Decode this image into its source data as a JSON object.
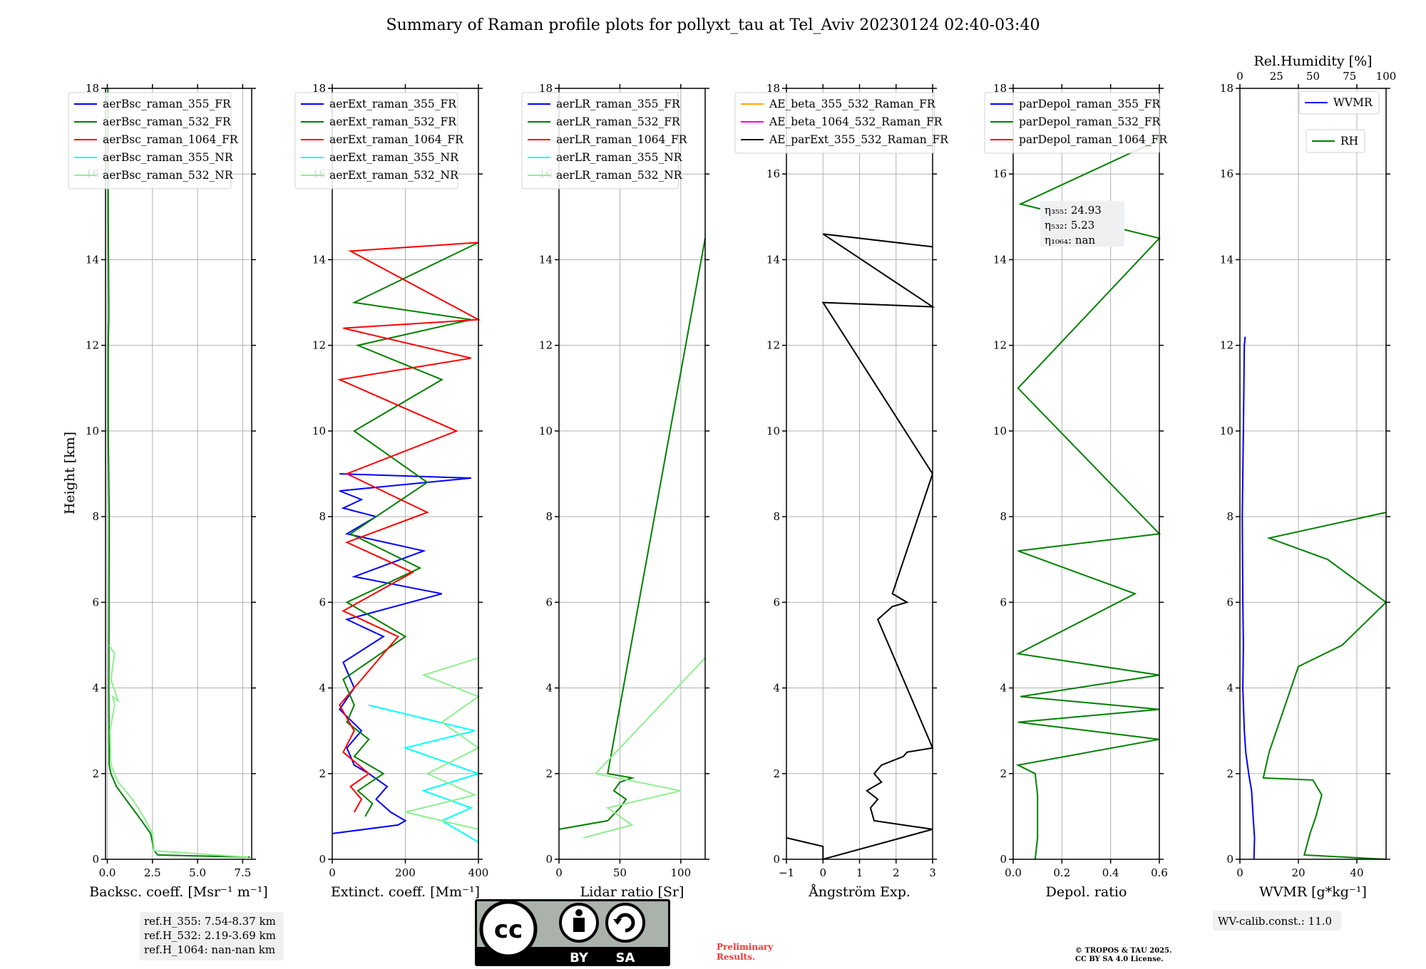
{
  "figure": {
    "title": "Summary of Raman profile plots for pollyxt_tau at Tel_Aviv 20230124 02:40-03:40",
    "ylabel": "Height [km]",
    "notes": {
      "ref_heights": [
        "ref.H_355: 7.54-8.37 km",
        "ref.H_532: 2.19-3.69 km",
        "ref.H_1064: nan-nan km"
      ],
      "wv_calib": "WV-calib.const.: 11.0",
      "preliminary": [
        "Preliminary",
        "Results."
      ],
      "copyright": [
        "© TROPOS & TAU 2025.",
        "CC BY SA 4.0 License."
      ],
      "license_badge": [
        "BY",
        "SA"
      ]
    },
    "colors": {
      "blue": "#0000ff",
      "green": "#008000",
      "red": "#ff0000",
      "cyan": "#00ffff",
      "lightgreen": "#90ee90",
      "orange": "#ffa500",
      "magenta": "#ff00ff",
      "black": "#000000"
    }
  },
  "chart_data": [
    {
      "type": "line",
      "xlabel": "Backsc. coeff. [Msr⁻¹ m⁻¹]",
      "xlim": [
        -0.1,
        8
      ],
      "ylim": [
        0,
        18
      ],
      "xticks": [
        "0.0",
        "2.5",
        "5.0",
        "7.5"
      ],
      "xtick_values": [
        0,
        2.5,
        5,
        7.5
      ],
      "yticks": [
        "0",
        "2",
        "4",
        "6",
        "8",
        "10",
        "12",
        "14",
        "16",
        "18"
      ],
      "grid": true,
      "legend_position": "top-left",
      "series": [
        {
          "name": "aerBsc_raman_355_FR",
          "color": "#0000ff",
          "x": [],
          "y": []
        },
        {
          "name": "aerBsc_raman_532_FR",
          "color": "#008000",
          "x": [
            7.9,
            2.8,
            2.6,
            2.4,
            1.9,
            1.2,
            0.5,
            0.2,
            0.1,
            0.08,
            0.1,
            0.05,
            0.05,
            0.08,
            0.05,
            0.03
          ],
          "y": [
            0.05,
            0.1,
            0.2,
            0.6,
            0.9,
            1.3,
            1.7,
            2.0,
            2.2,
            4.0,
            8.0,
            10.0,
            12.0,
            12.7,
            15.0,
            18.0
          ]
        },
        {
          "name": "aerBsc_raman_1064_FR",
          "color": "#ff0000",
          "x": [],
          "y": []
        },
        {
          "name": "aerBsc_raman_355_NR",
          "color": "#00ffff",
          "x": [],
          "y": []
        },
        {
          "name": "aerBsc_raman_532_NR",
          "color": "#90ee90",
          "x": [
            7.8,
            2.6,
            2.5,
            2.0,
            1.4,
            0.6,
            0.2,
            0.15,
            0.4,
            0.3,
            0.6,
            0.2,
            0.4,
            0.1
          ],
          "y": [
            0.05,
            0.2,
            0.6,
            1.0,
            1.4,
            1.8,
            2.2,
            3.0,
            3.6,
            3.8,
            3.7,
            4.2,
            4.8,
            5.0
          ]
        }
      ]
    },
    {
      "type": "line",
      "xlabel": "Extinct. coeff. [Mm⁻¹]",
      "xlim": [
        0,
        400
      ],
      "ylim": [
        0,
        18
      ],
      "xticks": [
        "0",
        "200",
        "400"
      ],
      "xtick_values": [
        0,
        200,
        400
      ],
      "yticks": [
        "0",
        "2",
        "4",
        "6",
        "8",
        "10",
        "12",
        "14",
        "16",
        "18"
      ],
      "grid": true,
      "legend_position": "top-left",
      "series": [
        {
          "name": "aerExt_raman_355_FR",
          "color": "#0000ff",
          "x": [
            0,
            180,
            200,
            160,
            120,
            150,
            100,
            60,
            40,
            80,
            20,
            60,
            30,
            140,
            40,
            300,
            60,
            250,
            40,
            120,
            30,
            80,
            20,
            380,
            20
          ],
          "y": [
            0.6,
            0.8,
            0.9,
            1.1,
            1.4,
            1.7,
            2.0,
            2.2,
            2.6,
            3.0,
            3.5,
            4.0,
            4.6,
            5.2,
            5.6,
            6.2,
            6.6,
            7.2,
            7.6,
            8.0,
            8.2,
            8.4,
            8.6,
            8.9,
            9.0
          ]
        },
        {
          "name": "aerExt_raman_532_FR",
          "color": "#008000",
          "x": [
            90,
            110,
            70,
            140,
            60,
            100,
            40,
            60,
            30,
            200,
            40,
            240,
            50,
            260,
            60,
            300,
            70,
            380,
            60,
            400
          ],
          "y": [
            1.0,
            1.3,
            1.6,
            2.0,
            2.4,
            2.8,
            3.2,
            3.6,
            4.2,
            5.2,
            6.0,
            6.8,
            7.6,
            8.8,
            10.0,
            11.2,
            12.0,
            12.6,
            13.0,
            14.4
          ]
        },
        {
          "name": "aerExt_raman_1064_FR",
          "color": "#ff0000",
          "x": [
            60,
            80,
            50,
            100,
            30,
            60,
            20,
            180,
            30,
            220,
            40,
            260,
            40,
            340,
            20,
            380,
            30,
            400,
            50,
            400
          ],
          "y": [
            1.1,
            1.4,
            1.7,
            2.0,
            2.5,
            3.0,
            3.6,
            5.2,
            5.8,
            6.7,
            7.4,
            8.1,
            9.0,
            10.0,
            11.2,
            11.7,
            12.4,
            12.6,
            14.2,
            14.4
          ]
        },
        {
          "name": "aerExt_raman_355_NR",
          "color": "#00ffff",
          "x": [
            400,
            300,
            380,
            250,
            400,
            200,
            390,
            100
          ],
          "y": [
            0.4,
            0.9,
            1.2,
            1.6,
            2.0,
            2.6,
            3.0,
            3.6
          ]
        },
        {
          "name": "aerExt_raman_532_NR",
          "color": "#90ee90",
          "x": [
            400,
            200,
            390,
            260,
            400,
            300,
            400,
            250,
            400
          ],
          "y": [
            0.7,
            1.1,
            1.5,
            2.0,
            2.6,
            3.2,
            3.8,
            4.3,
            4.7
          ]
        }
      ]
    },
    {
      "type": "line",
      "xlabel": "Lidar ratio [Sr]",
      "xlim": [
        0,
        120
      ],
      "ylim": [
        0,
        18
      ],
      "xticks": [
        "0",
        "50",
        "100"
      ],
      "xtick_values": [
        0,
        50,
        100
      ],
      "yticks": [
        "0",
        "2",
        "4",
        "6",
        "8",
        "10",
        "12",
        "14",
        "16",
        "18"
      ],
      "grid": true,
      "legend_position": "top-left",
      "series": [
        {
          "name": "aerLR_raman_355_FR",
          "color": "#0000ff",
          "x": [],
          "y": []
        },
        {
          "name": "aerLR_raman_532_FR",
          "color": "#008000",
          "x": [
            0,
            40,
            50,
            55,
            45,
            50,
            60,
            40,
            120
          ],
          "y": [
            0.7,
            0.9,
            1.2,
            1.4,
            1.6,
            1.8,
            1.9,
            2.0,
            14.5
          ]
        },
        {
          "name": "aerLR_raman_1064_FR",
          "color": "#ff0000",
          "x": [],
          "y": []
        },
        {
          "name": "aerLR_raman_355_NR",
          "color": "#00ffff",
          "x": [],
          "y": []
        },
        {
          "name": "aerLR_raman_532_NR",
          "color": "#90ee90",
          "x": [
            20,
            60,
            40,
            100,
            30,
            120
          ],
          "y": [
            0.5,
            0.8,
            1.2,
            1.6,
            2.0,
            4.7
          ]
        }
      ]
    },
    {
      "type": "line",
      "xlabel": "Ångström Exp.",
      "xlim": [
        -1,
        3
      ],
      "ylim": [
        0,
        18
      ],
      "xticks": [
        "−1",
        "0",
        "1",
        "2",
        "3"
      ],
      "xtick_values": [
        -1,
        0,
        1,
        2,
        3
      ],
      "yticks": [
        "0",
        "2",
        "4",
        "6",
        "8",
        "10",
        "12",
        "14",
        "16",
        "18"
      ],
      "grid": true,
      "legend_position": "top-left",
      "series": [
        {
          "name": "AE_beta_355_532_Raman_FR",
          "color": "#ffa500",
          "x": [],
          "y": []
        },
        {
          "name": "AE_beta_1064_532_Raman_FR",
          "color": "#ff00ff",
          "x": [],
          "y": []
        },
        {
          "name": "AE_parExt_355_532_Raman_FR",
          "color": "#000000",
          "x": [
            -1,
            0,
            0,
            3,
            1.4,
            1.3,
            1.5,
            1.2,
            1.6,
            1.4,
            1.6,
            2.2,
            2.3,
            3,
            1.5,
            1.9,
            2.3,
            1.9,
            3,
            0,
            3,
            0,
            3
          ],
          "y": [
            0.5,
            0.3,
            0,
            0.7,
            0.9,
            1.2,
            1.4,
            1.6,
            1.8,
            2.0,
            2.2,
            2.4,
            2.5,
            2.6,
            5.6,
            5.9,
            6.0,
            6.2,
            9.0,
            13.0,
            12.9,
            14.6,
            14.3
          ]
        }
      ]
    },
    {
      "type": "line",
      "xlabel": "Depol. ratio",
      "xlim": [
        0,
        0.6
      ],
      "ylim": [
        0,
        18
      ],
      "xticks": [
        "0.0",
        "0.2",
        "0.4",
        "0.6"
      ],
      "xtick_values": [
        0,
        0.2,
        0.4,
        0.6
      ],
      "yticks": [
        "0",
        "2",
        "4",
        "6",
        "8",
        "10",
        "12",
        "14",
        "16",
        "18"
      ],
      "grid": true,
      "legend_position": "top-left",
      "annotation": [
        "η₃₅₅: 24.93",
        "η₅₃₂: 5.23",
        "η₁₀₆₄: nan"
      ],
      "series": [
        {
          "name": "parDepol_raman_355_FR",
          "color": "#0000ff",
          "x": [],
          "y": []
        },
        {
          "name": "parDepol_raman_532_FR",
          "color": "#008000",
          "x": [
            0.09,
            0.1,
            0.1,
            0.09,
            0.02,
            0.6,
            0.02,
            0.6,
            0.03,
            0.6,
            0.02,
            0.5,
            0.02,
            0.6,
            0.02,
            0.6,
            0.03,
            0.6
          ],
          "y": [
            0,
            0.5,
            1.5,
            2.0,
            2.2,
            2.8,
            3.2,
            3.5,
            3.8,
            4.3,
            4.8,
            6.2,
            7.2,
            7.6,
            11.0,
            14.5,
            15.3,
            16.8
          ]
        },
        {
          "name": "parDepol_raman_1064_FR",
          "color": "#ff0000",
          "x": [],
          "y": []
        }
      ]
    },
    {
      "type": "line",
      "xlabel": "WVMR [g*kg⁻¹]",
      "top_xlabel": "Rel.Humidity [%]",
      "xlim": [
        0,
        50
      ],
      "ylim": [
        0,
        18
      ],
      "xticks": [
        "0",
        "20",
        "40"
      ],
      "xtick_values": [
        0,
        20,
        40
      ],
      "top_xticks": [
        "0",
        "25",
        "50",
        "75",
        "100"
      ],
      "top_xtick_values": [
        0,
        25,
        50,
        75,
        100
      ],
      "yticks": [
        "0",
        "2",
        "4",
        "6",
        "8",
        "10",
        "12",
        "14",
        "16",
        "18"
      ],
      "grid": true,
      "legend_position": "top-right",
      "series": [
        {
          "name": "WVMR",
          "color": "#0000ff",
          "x": [
            4.8,
            5,
            4.5,
            4,
            3.5,
            3,
            2,
            1.5,
            1,
            1.2,
            1,
            0.8,
            1.2,
            1.5,
            1.8
          ],
          "y": [
            0,
            0.5,
            1.0,
            1.6,
            1.8,
            2.0,
            2.5,
            3.0,
            4.0,
            5.0,
            6.0,
            8.0,
            10.0,
            12.0,
            12.2
          ]
        },
        {
          "name": "RH",
          "color": "#008000",
          "x": [
            50,
            22,
            24,
            26,
            28,
            25,
            8,
            10,
            15,
            20,
            35,
            50,
            30,
            10,
            50
          ],
          "y": [
            0,
            0.1,
            0.6,
            1.0,
            1.5,
            1.85,
            1.9,
            2.5,
            3.5,
            4.5,
            5.0,
            6.0,
            7.0,
            7.5,
            8.1
          ]
        }
      ]
    }
  ]
}
